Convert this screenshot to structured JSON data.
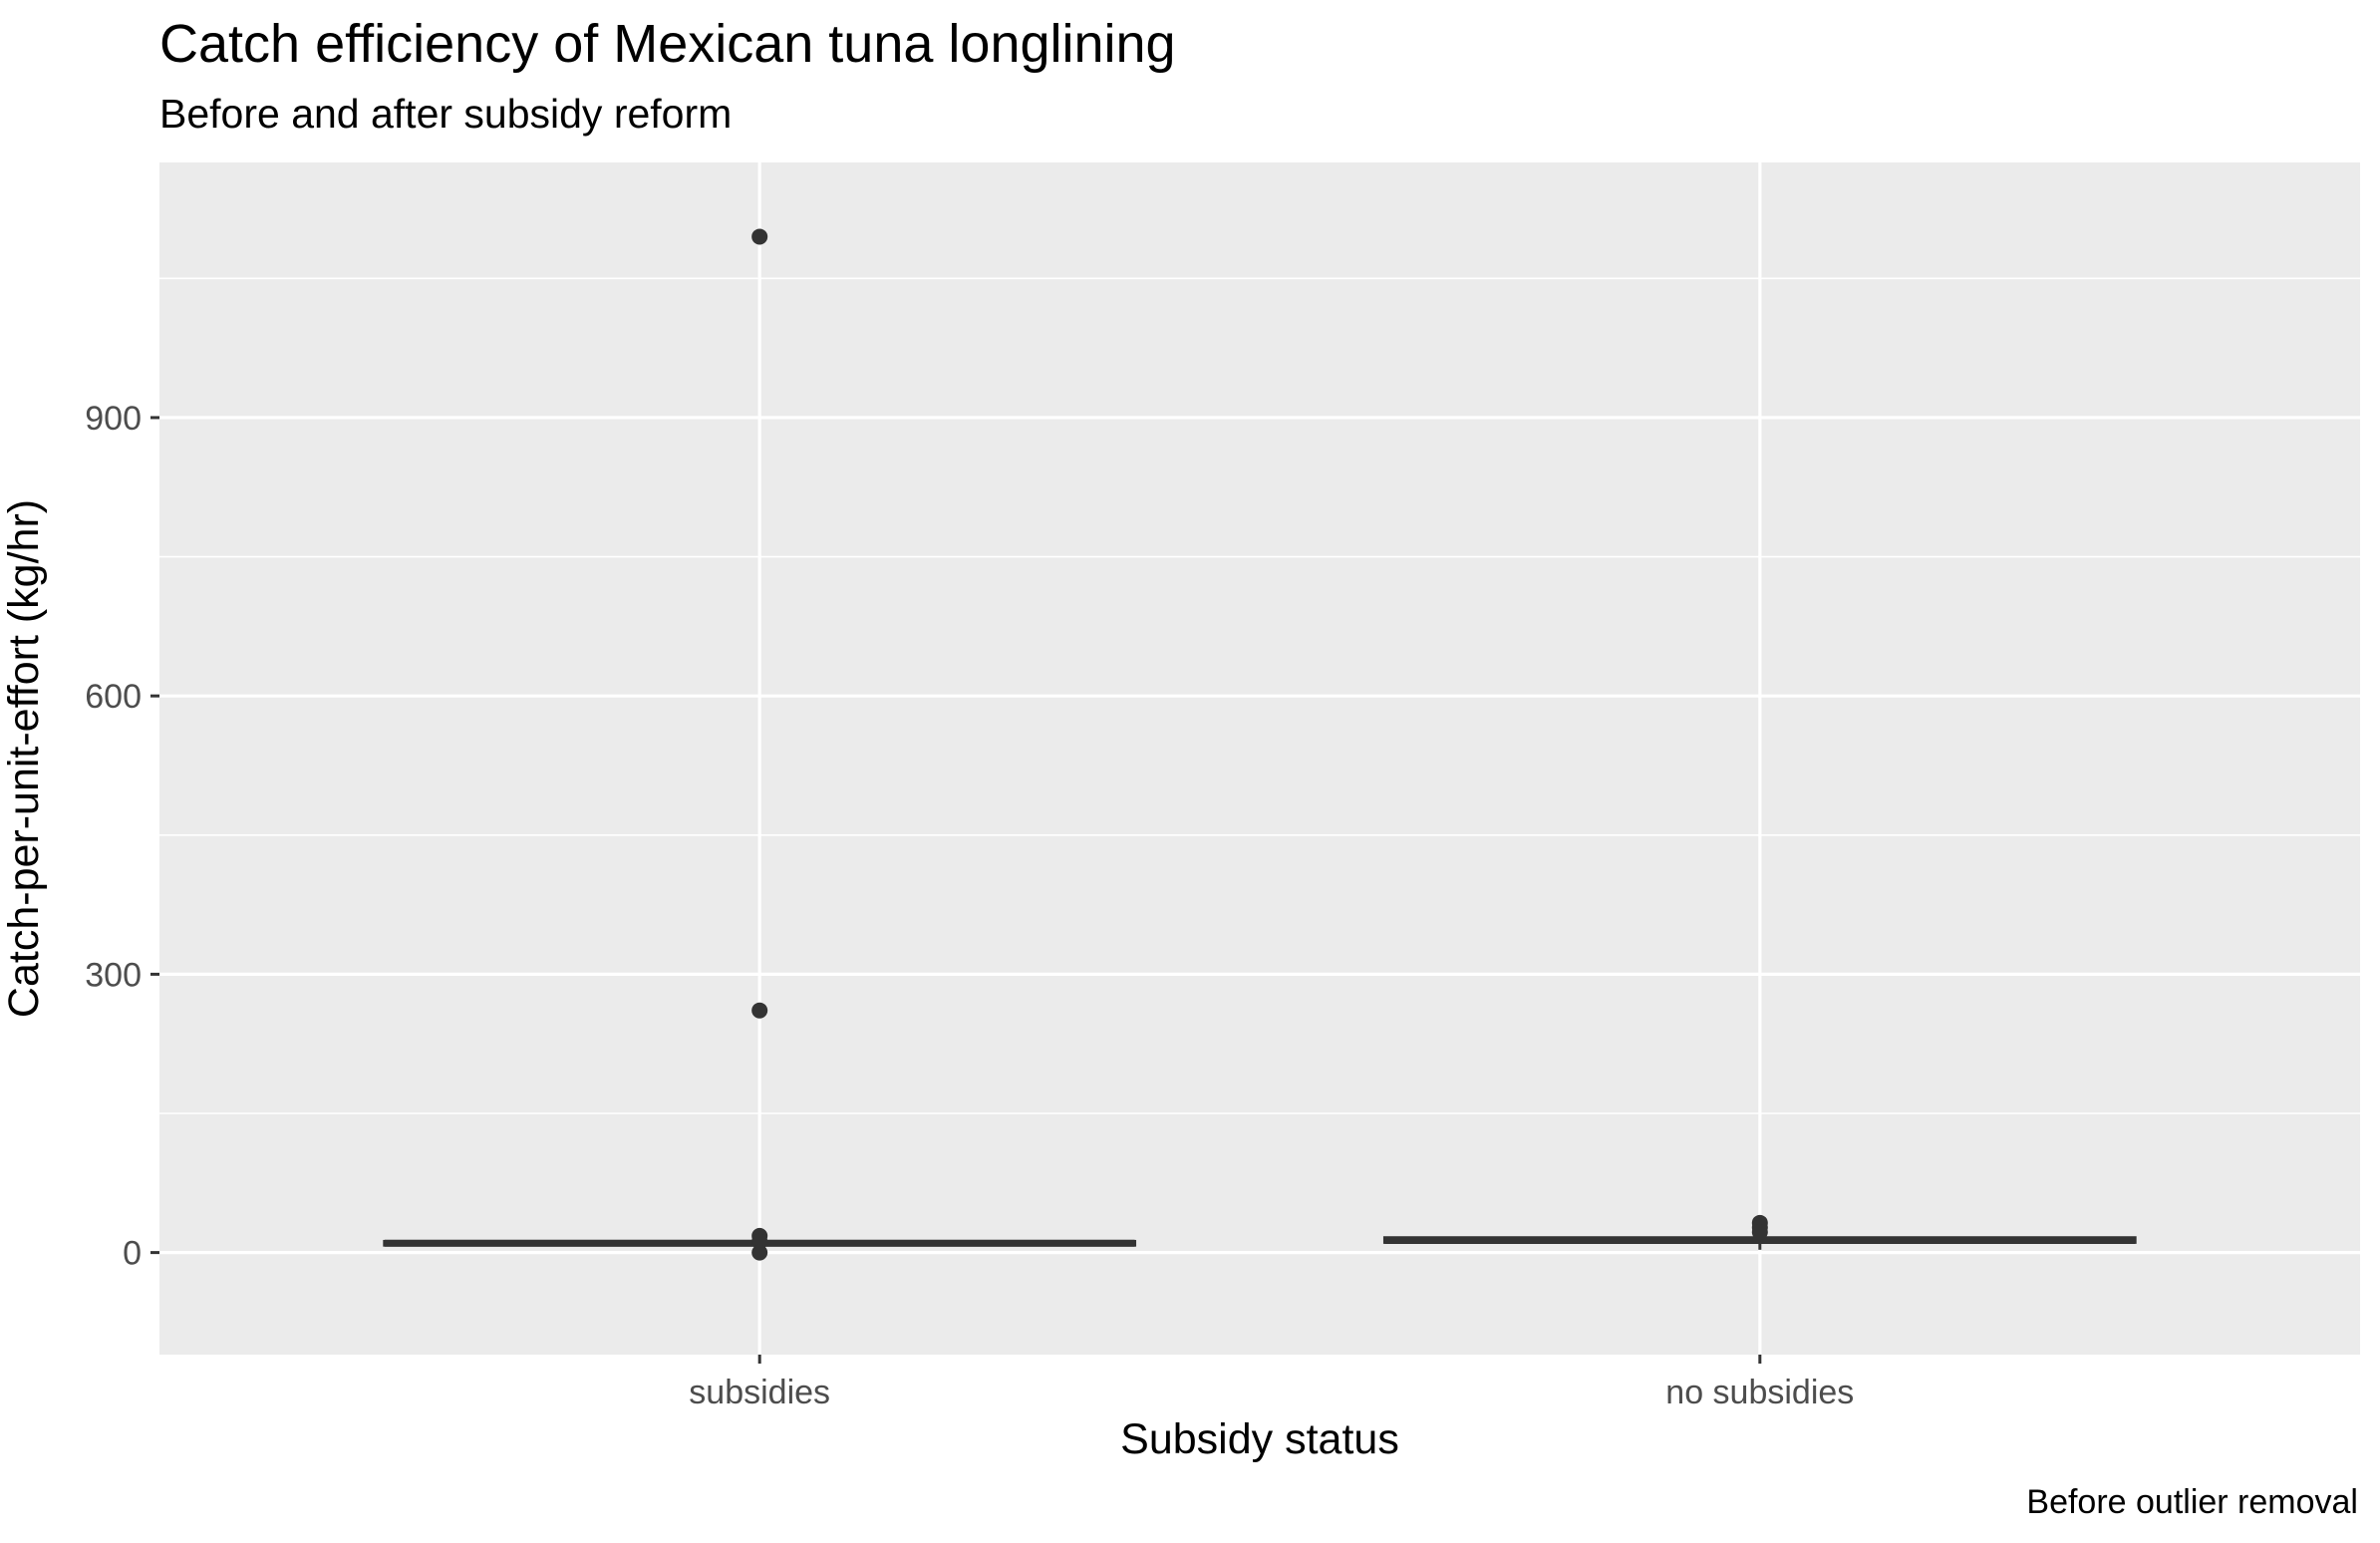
{
  "chart_data": {
    "type": "box",
    "title": "Catch efficiency of Mexican tuna longlining",
    "subtitle": "Before and after subsidy reform",
    "caption": "Before outlier removal",
    "xlabel": "Subsidy status",
    "ylabel": "Catch-per-unit-effort (kg/hr)",
    "ylim": [
      -110,
      1175
    ],
    "yticks": [
      0,
      300,
      600,
      900
    ],
    "y_minor_ticks": [
      150,
      450,
      750,
      1050
    ],
    "categories": [
      "subsidies",
      "no subsidies"
    ],
    "groups": [
      {
        "category": "subsidies",
        "q1": 8,
        "median": 10,
        "q3": 12,
        "whisker_low": 0,
        "whisker_high": 18,
        "points": [
          1095,
          261,
          18,
          12,
          0
        ]
      },
      {
        "category": "no subsidies",
        "q1": 11,
        "median": 13,
        "q3": 16,
        "whisker_low": 3,
        "whisker_high": 30,
        "points": [
          32,
          27,
          22
        ]
      }
    ],
    "grid": true,
    "legend": "none"
  },
  "colors": {
    "panel_background": "#ebebeb",
    "grid_major": "#ffffff",
    "grid_minor": "#ffffff",
    "box_line": "#333333",
    "point": "#333333",
    "tick_label": "#4d4d4d",
    "tick_mark": "#333333"
  }
}
